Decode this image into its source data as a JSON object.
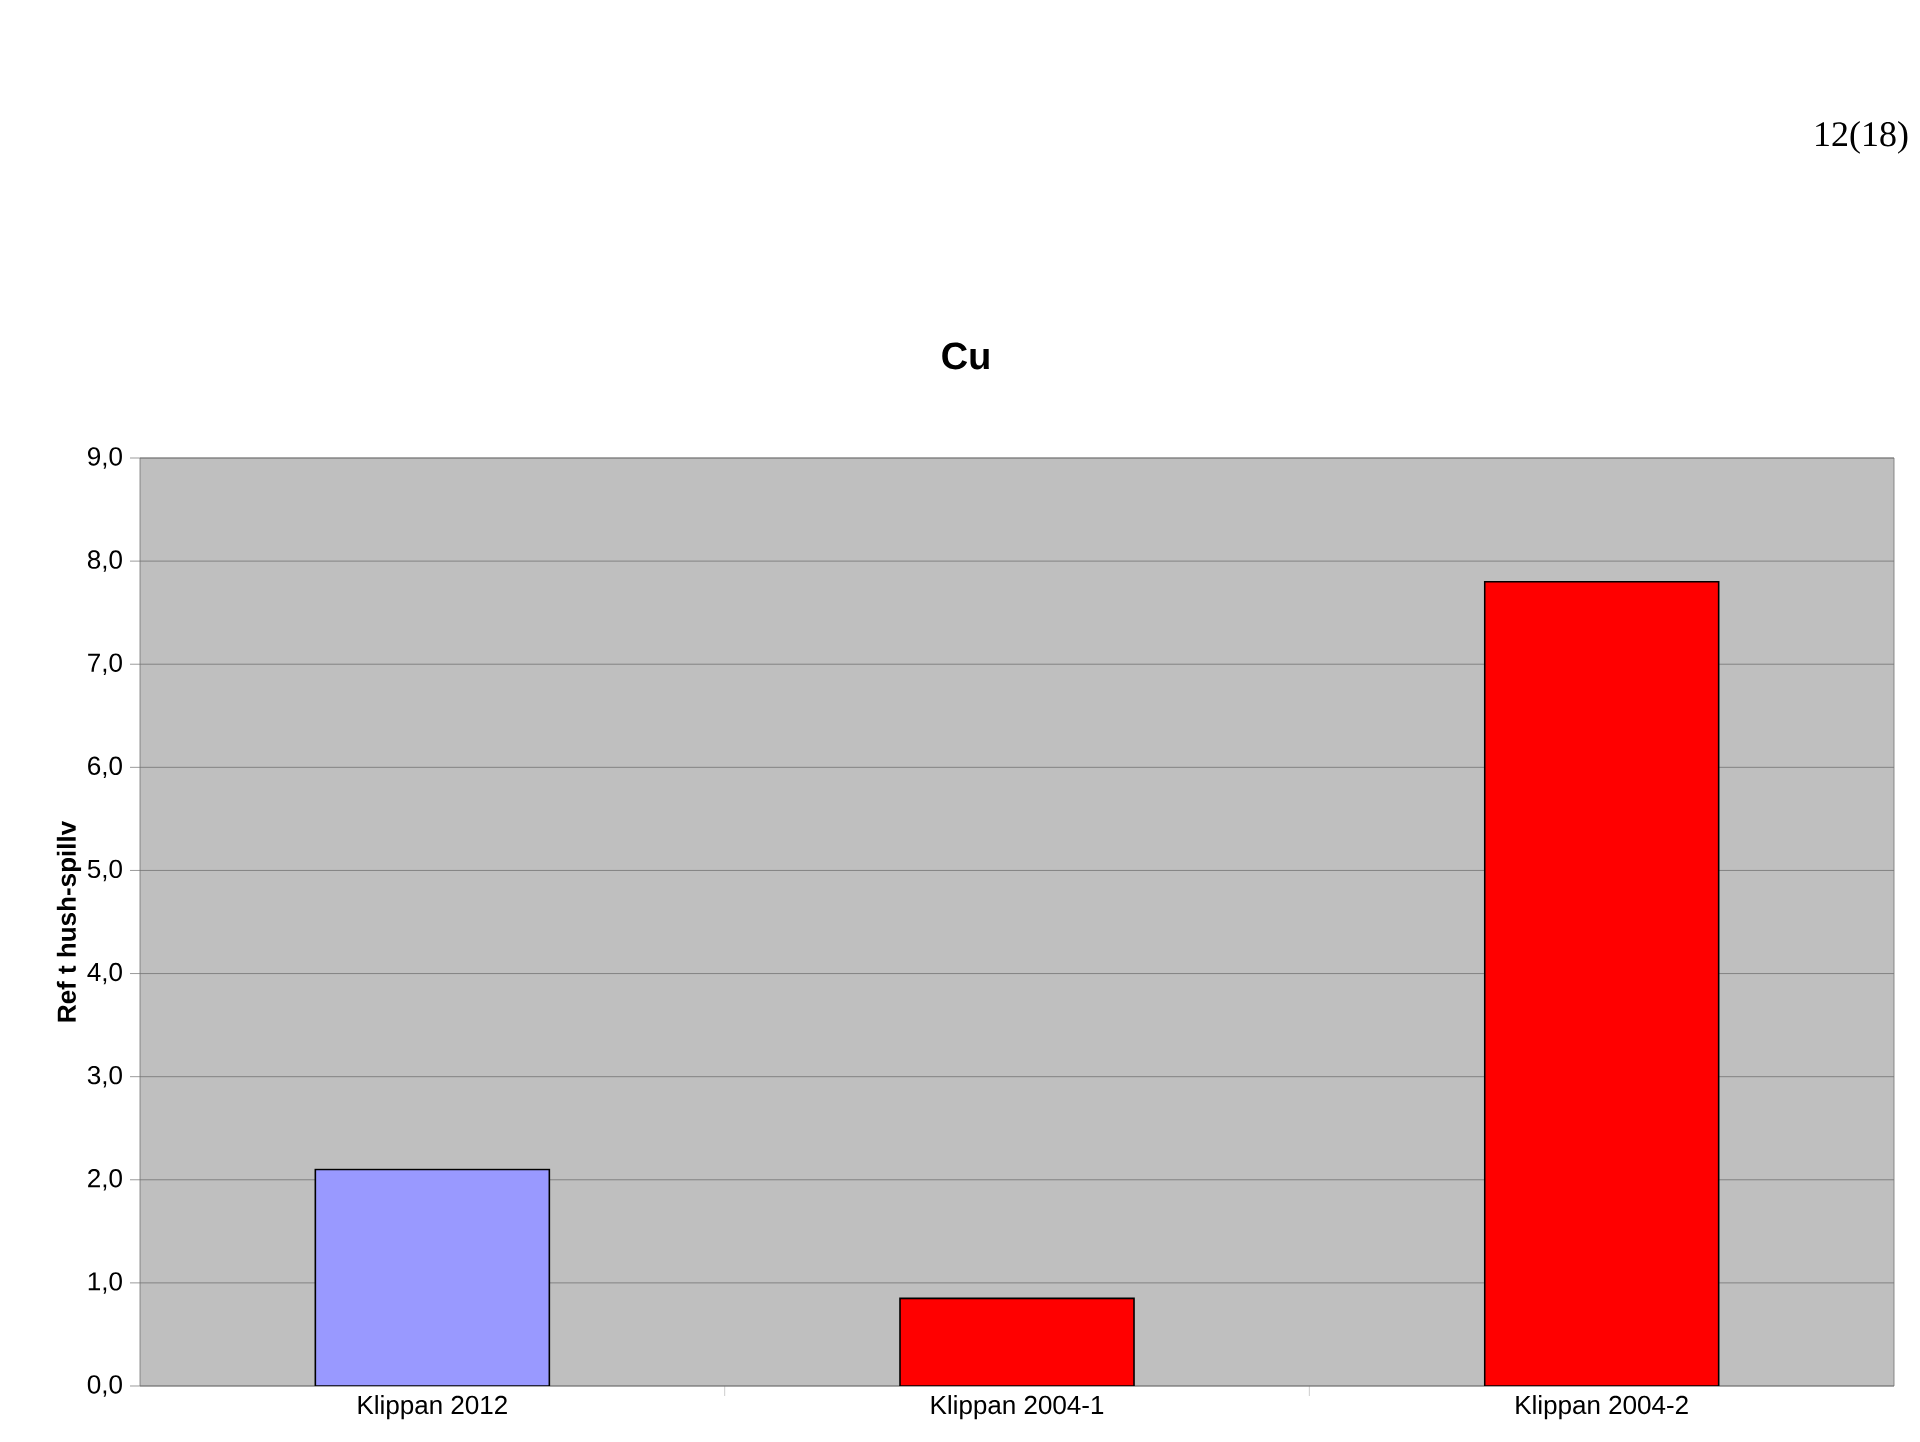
{
  "chart_data": {
    "type": "bar",
    "title": "**Cu**",
    "ylabel": "**Ref t hush-spillv**",
    "annotations": [
      "12(18)"
    ],
    "categories": [
      "Klippan 2012",
      "Klippan 2004-1",
      "Klippan 2004-2"
    ],
    "values": [
      2.1,
      0.85,
      7.8
    ],
    "colors": [
      "#9999ff",
      "#ff0000",
      "#ff0000"
    ],
    "ylim": [
      0,
      9
    ],
    "yticks": [
      {
        "value": 0,
        "label": "0,0"
      },
      {
        "value": 1,
        "label": "1,0"
      },
      {
        "value": 2,
        "label": "2,0"
      },
      {
        "value": 3,
        "label": "3,0"
      },
      {
        "value": 4,
        "label": "4,0"
      },
      {
        "value": 5,
        "label": "5,0"
      },
      {
        "value": 6,
        "label": "6,0"
      },
      {
        "value": 7,
        "label": "7,0"
      },
      {
        "value": 8,
        "label": "8,0"
      },
      {
        "value": 9,
        "label": "9,0"
      }
    ],
    "grid": "y"
  }
}
